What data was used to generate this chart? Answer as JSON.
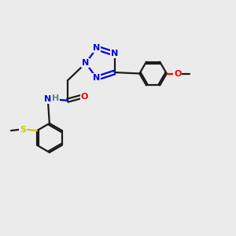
{
  "bg_color": "#ebebeb",
  "bond_color": "#1a1a1a",
  "N_color": "#0000ee",
  "O_color": "#ee0000",
  "S_color": "#cccc00",
  "H_color": "#4a8888",
  "C_color": "#1a1a1a",
  "line_width": 1.6,
  "dbo": 0.07,
  "figsize": [
    3.0,
    3.0
  ],
  "dpi": 100,
  "xlim": [
    0,
    10
  ],
  "ylim": [
    0,
    10
  ]
}
